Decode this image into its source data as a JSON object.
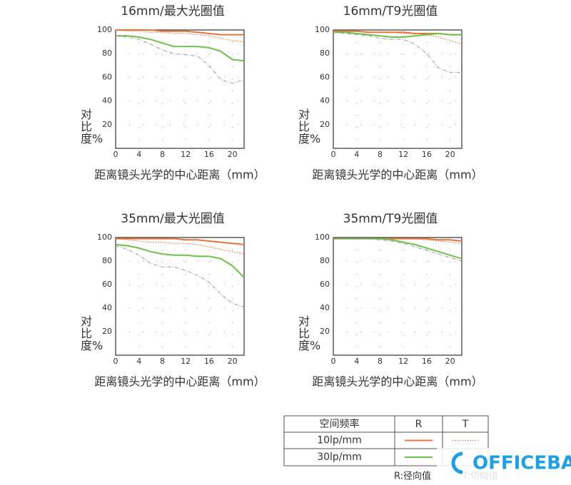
{
  "chart_data": [
    {
      "type": "line",
      "title": "16mm/最大光圈值",
      "ylabel": "对比度%",
      "xlabel": "距离镜头光学的中心距离（mm）",
      "x": [
        0,
        2,
        4,
        6,
        8,
        10,
        12,
        14,
        16,
        18,
        20,
        22
      ],
      "xlim": [
        0,
        22
      ],
      "xticks": [
        0,
        4,
        8,
        12,
        16,
        20
      ],
      "ylim": [
        0,
        100
      ],
      "yticks": [
        20,
        40,
        60,
        80,
        100
      ],
      "grid": true,
      "series": [
        {
          "color": "#e8743b",
          "dash": "solid",
          "values": [
            100,
            100,
            100,
            100,
            99,
            99,
            99,
            98,
            97,
            96,
            96,
            96
          ]
        },
        {
          "color": "#e8743b",
          "dash": "dotted",
          "values": [
            100,
            99,
            99,
            98,
            98,
            97,
            97,
            96,
            95,
            93,
            91,
            90
          ]
        },
        {
          "color": "#6cc24a",
          "dash": "solid",
          "values": [
            95,
            95,
            94,
            92,
            89,
            86,
            86,
            86,
            85,
            82,
            75,
            74
          ]
        },
        {
          "color": "#9a9a9a",
          "dash": "dashdot",
          "values": [
            95,
            94,
            92,
            88,
            83,
            80,
            79,
            78,
            70,
            58,
            55,
            58
          ]
        }
      ]
    },
    {
      "type": "line",
      "title": "16mm/T9光圈值",
      "ylabel": "对比度%",
      "xlabel": "距离镜头光学的中心距离（mm）",
      "x": [
        0,
        2,
        4,
        6,
        8,
        10,
        12,
        14,
        16,
        18,
        20,
        22
      ],
      "xlim": [
        0,
        22
      ],
      "xticks": [
        0,
        4,
        8,
        12,
        16,
        20
      ],
      "ylim": [
        0,
        100
      ],
      "yticks": [
        20,
        40,
        60,
        80,
        100
      ],
      "grid": true,
      "series": [
        {
          "color": "#e8743b",
          "dash": "solid",
          "values": [
            99,
            99,
            99,
            98,
            98,
            98,
            98,
            97,
            97,
            97,
            96,
            96
          ]
        },
        {
          "color": "#e8743b",
          "dash": "dotted",
          "values": [
            99,
            99,
            99,
            98,
            98,
            98,
            97,
            97,
            96,
            94,
            91,
            88
          ]
        },
        {
          "color": "#6cc24a",
          "dash": "solid",
          "values": [
            98,
            98,
            97,
            96,
            95,
            94,
            94,
            95,
            96,
            97,
            96,
            96
          ]
        },
        {
          "color": "#9a9a9a",
          "dash": "dashdot",
          "values": [
            98,
            97,
            96,
            95,
            93,
            92,
            92,
            88,
            80,
            68,
            64,
            64
          ]
        }
      ]
    },
    {
      "type": "line",
      "title": "35mm/最大光圈值",
      "ylabel": "对比度%",
      "xlabel": "距离镜头光学的中心距离（mm）",
      "x": [
        0,
        2,
        4,
        6,
        8,
        10,
        12,
        14,
        16,
        18,
        20,
        22
      ],
      "xlim": [
        0,
        22
      ],
      "xticks": [
        0,
        4,
        8,
        12,
        16,
        20
      ],
      "ylim": [
        0,
        100
      ],
      "yticks": [
        20,
        40,
        60,
        80,
        100
      ],
      "grid": true,
      "series": [
        {
          "color": "#e8743b",
          "dash": "solid",
          "values": [
            99,
            99,
            99,
            99,
            99,
            99,
            98,
            98,
            97,
            96,
            95,
            94
          ]
        },
        {
          "color": "#e8743b",
          "dash": "dotted",
          "values": [
            99,
            98,
            97,
            96,
            96,
            95,
            95,
            94,
            92,
            90,
            88,
            86
          ]
        },
        {
          "color": "#6cc24a",
          "dash": "solid",
          "values": [
            94,
            93,
            91,
            88,
            86,
            85,
            85,
            84,
            84,
            82,
            76,
            66
          ]
        },
        {
          "color": "#9a9a9a",
          "dash": "dashdot",
          "values": [
            93,
            90,
            85,
            78,
            75,
            75,
            72,
            68,
            62,
            52,
            44,
            41
          ]
        }
      ]
    },
    {
      "type": "line",
      "title": "35mm/T9光圈值",
      "ylabel": "对比度%",
      "xlabel": "距离镜头光学的中心距离（mm）",
      "x": [
        0,
        2,
        4,
        6,
        8,
        10,
        12,
        14,
        16,
        18,
        20,
        22
      ],
      "xlim": [
        0,
        22
      ],
      "xticks": [
        0,
        4,
        8,
        12,
        16,
        20
      ],
      "ylim": [
        0,
        100
      ],
      "yticks": [
        20,
        40,
        60,
        80,
        100
      ],
      "grid": true,
      "series": [
        {
          "color": "#e8743b",
          "dash": "solid",
          "values": [
            99,
            99,
            99,
            99,
            99,
            99,
            99,
            99,
            99,
            98,
            98,
            97
          ]
        },
        {
          "color": "#e8743b",
          "dash": "dotted",
          "values": [
            99,
            99,
            99,
            99,
            99,
            99,
            99,
            99,
            98,
            97,
            96,
            95
          ]
        },
        {
          "color": "#6cc24a",
          "dash": "solid",
          "values": [
            99,
            99,
            99,
            99,
            99,
            98,
            96,
            94,
            91,
            88,
            85,
            82
          ]
        },
        {
          "color": "#9a9a9a",
          "dash": "dashdot",
          "values": [
            99,
            99,
            99,
            99,
            98,
            97,
            95,
            92,
            89,
            86,
            83,
            80
          ]
        }
      ]
    }
  ],
  "legend": {
    "header": [
      "空间频率",
      "R",
      "T"
    ],
    "rows": [
      {
        "label": "10lp/mm",
        "samples": [
          {
            "color": "#e8743b",
            "dash": "solid"
          },
          {
            "color": "#e8743b",
            "dash": "dotted"
          }
        ]
      },
      {
        "label": "30lp/mm",
        "samples": [
          {
            "color": "#6cc24a",
            "dash": "solid"
          },
          {
            "color": "#9a9a9a",
            "dash": "dashdot"
          }
        ]
      }
    ],
    "notes": [
      "R:径向值",
      "T:切向值"
    ]
  },
  "watermark": "OFFICEBA"
}
